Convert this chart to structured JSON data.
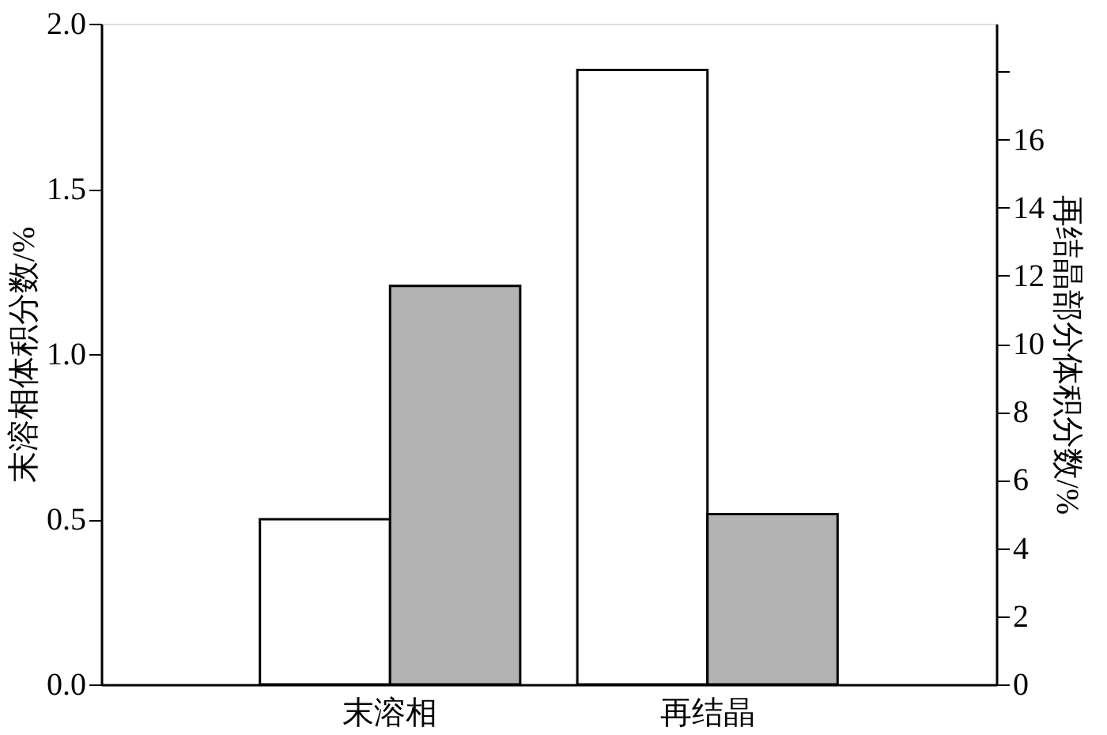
{
  "chart_data": {
    "type": "bar",
    "ylabel": "末溶相体积分数/%",
    "y2label": "再结晶部分体积分数/%",
    "categories": [
      "末溶相",
      "再结晶"
    ],
    "series": [
      {
        "color": "#ffffff",
        "values": [
          0.5,
          1.86
        ]
      },
      {
        "color": "#b3b3b3",
        "values": [
          11.7,
          5.0
        ],
        "axis": "y2"
      }
    ],
    "ylim": [
      0,
      2.0
    ],
    "yticks": [
      {
        "value": 0,
        "label": "0.0"
      },
      0.5,
      {
        "value": 1,
        "label": "1.0"
      },
      1.5,
      {
        "value": 2,
        "label": "2.0"
      }
    ],
    "y2lim": [
      0,
      19.4
    ],
    "y2ticks": [
      0,
      2,
      4,
      6,
      8,
      10,
      12,
      14,
      16,
      {
        "value": 18,
        "label": null
      }
    ],
    "grid": false
  }
}
